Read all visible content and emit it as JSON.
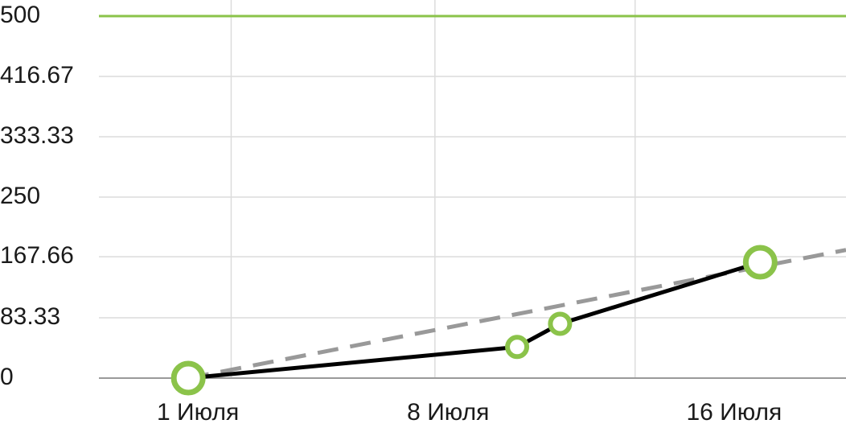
{
  "chart_data": {
    "type": "line",
    "title": "",
    "xlabel": "",
    "ylabel": "",
    "ylim": [
      0,
      500
    ],
    "y_ticks": [
      "0",
      "83.33",
      "167.66",
      "250",
      "333.33",
      "416.67",
      "500"
    ],
    "y_tick_values": [
      0,
      83.33,
      167.66,
      250,
      333.33,
      416.67,
      500
    ],
    "x_ticks": [
      {
        "label": "1 Июля",
        "day": 1
      },
      {
        "label": "8 Июля",
        "day": 8
      },
      {
        "label": "16 Июля",
        "day": 16
      }
    ],
    "x_range_days": [
      -1.5,
      19.4
    ],
    "x_gridlines_days": [
      2.2,
      7.9,
      13.5
    ],
    "grid": true,
    "legend": "none",
    "series": [
      {
        "role": "actual",
        "style": "solid",
        "color": "#000000",
        "marker_color": "#8bc34a",
        "points": [
          {
            "day": 1.0,
            "value": 0,
            "marker": "large"
          },
          {
            "day": 10.2,
            "value": 43,
            "marker": "small"
          },
          {
            "day": 11.4,
            "value": 75,
            "marker": "small"
          },
          {
            "day": 17.0,
            "value": 160,
            "marker": "large"
          }
        ]
      },
      {
        "role": "trend",
        "style": "dashed",
        "color": "#999999",
        "points": [
          {
            "day": 1.0,
            "value": 0
          },
          {
            "day": 19.4,
            "value": 177
          }
        ]
      },
      {
        "role": "target",
        "style": "solid",
        "color": "#8bc34a",
        "points": [
          {
            "day": -1.5,
            "value": 500
          },
          {
            "day": 19.4,
            "value": 500
          }
        ]
      }
    ]
  }
}
